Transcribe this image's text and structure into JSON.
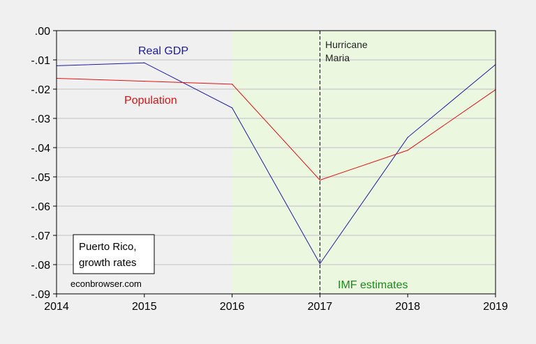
{
  "chart_data": {
    "type": "line",
    "title": "",
    "xlabel": "",
    "ylabel": "",
    "x": [
      2014,
      2015,
      2016,
      2017,
      2018,
      2019
    ],
    "xlim": [
      2014,
      2019
    ],
    "ylim": [
      -0.09,
      0.0
    ],
    "yticks": [
      0.0,
      -0.01,
      -0.02,
      -0.03,
      -0.04,
      -0.05,
      -0.06,
      -0.07,
      -0.08,
      -0.09
    ],
    "ytick_labels": [
      ".00",
      "-.01",
      "-.02",
      "-.03",
      "-.04",
      "-.05",
      "-.06",
      "-.07",
      "-.08",
      "-.09"
    ],
    "xtick_labels": [
      "2014",
      "2015",
      "2016",
      "2017",
      "2018",
      "2019"
    ],
    "grid": "horizontal",
    "series": [
      {
        "name": "Real GDP",
        "color": "#1a1aa8",
        "values": [
          -0.012,
          -0.011,
          -0.0264,
          -0.0797,
          -0.0365,
          -0.0116
        ]
      },
      {
        "name": "Population",
        "color": "#e01010",
        "values": [
          -0.0163,
          -0.0173,
          -0.0183,
          -0.0511,
          -0.0409,
          -0.0202
        ]
      }
    ],
    "shaded_region": {
      "from": 2016,
      "to": 2019,
      "color": "#ecf7e0",
      "label": "IMF estimates",
      "label_color": "#1a8a1a"
    },
    "vline": {
      "x": 2017,
      "style": "dashed",
      "label": "Hurricane\nMaria",
      "label_lines": [
        "Hurricane",
        "Maria"
      ]
    },
    "annotation_box": {
      "lines": [
        "Puerto Rico,",
        "growth rates"
      ]
    },
    "credit": "econbrowser.com"
  }
}
